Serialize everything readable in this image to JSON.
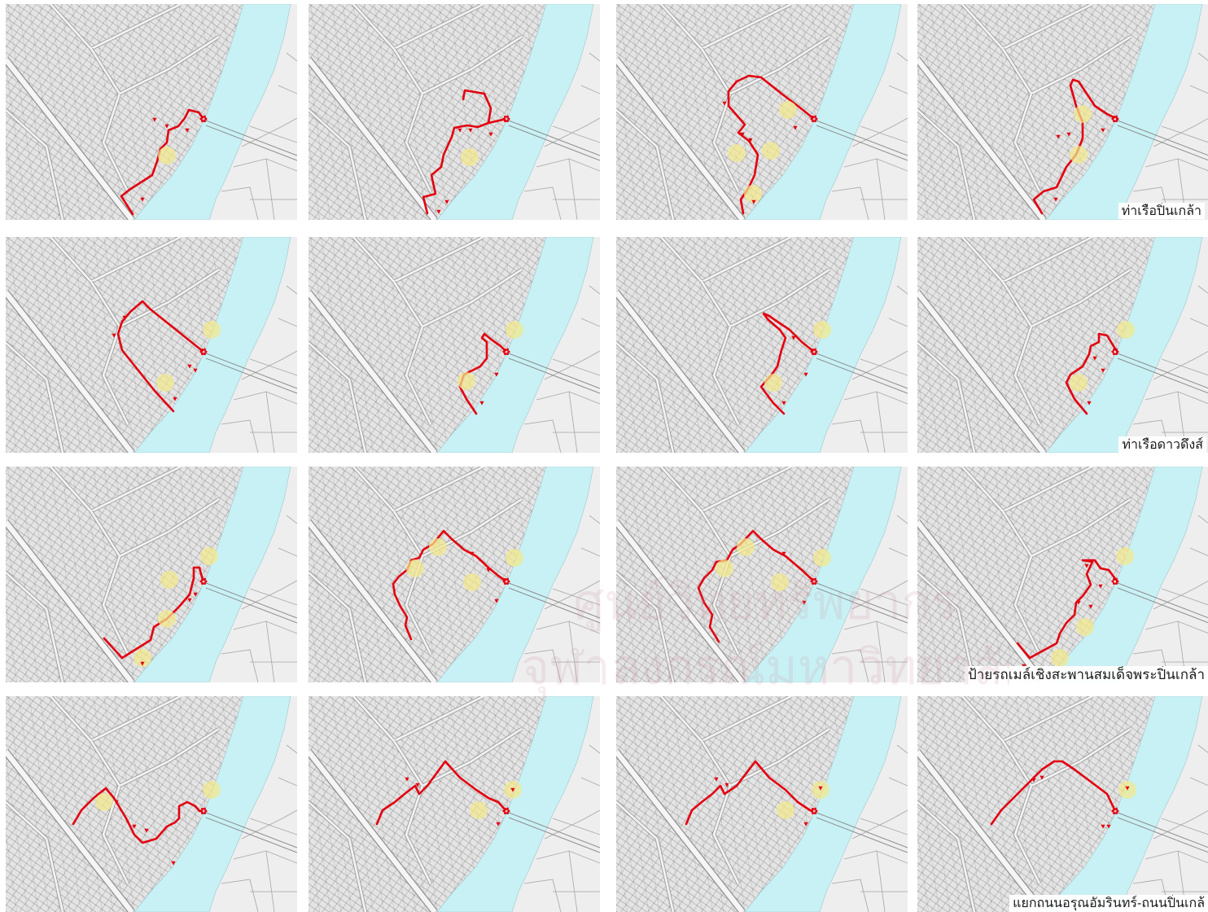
{
  "panel_labels": {
    "row1": "ท่าเรือปิ่นเกล้า",
    "row2": "ท่าเรือดาวดึงส์",
    "row3": "ป้ายรถเมล์เชิงสะพานสมเด็จพระปิ่นเกล้า",
    "row4": "แยกถนนอรุณอัมรินทร์-ถนนปิ่นเกล้"
  },
  "watermark": {
    "line1": "ศูนย์วิทยทรัพยากร",
    "line2": "จุฬาลงกรณ์มหาวิทยาลัย"
  },
  "colors": {
    "route": "#e3000f",
    "river": "#c8f1f5",
    "landmark": "#f2e98a",
    "map_base": "#e4e4e4"
  },
  "marker_icons": {
    "stop": "stop-marker-icon",
    "pier": "pier-marker-icon",
    "landmark": "landmark-circle-icon"
  }
}
